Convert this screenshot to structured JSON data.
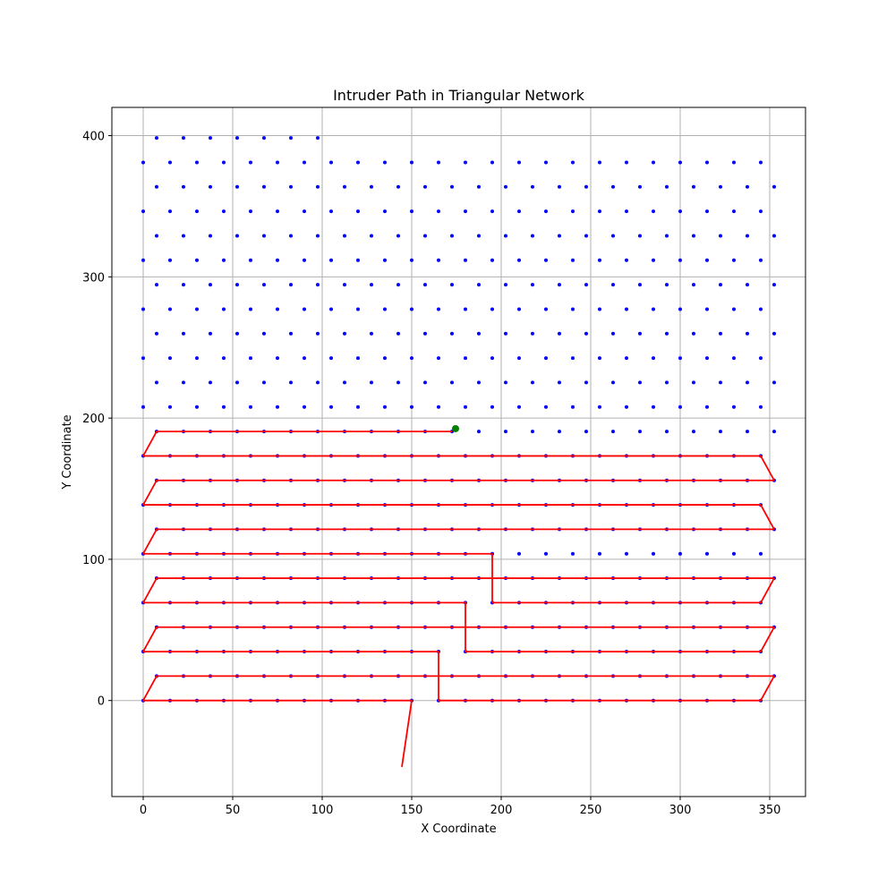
{
  "chart_data": {
    "type": "scatter",
    "title": "Intruder Path in Triangular Network",
    "xlabel": "X Coordinate",
    "ylabel": "Y Coordinate",
    "xlim": [
      -17.5,
      370
    ],
    "ylim": [
      -68,
      420
    ],
    "xticks": [
      0,
      50,
      100,
      150,
      200,
      250,
      300,
      350
    ],
    "yticks": [
      0,
      100,
      200,
      300,
      400
    ],
    "grid": true,
    "colors": {
      "nodes": "#0000ff",
      "path": "#ff0000",
      "intruder": "#008000",
      "grid": "#b0b0b0"
    },
    "network": {
      "layout": "triangular lattice",
      "spacing": 15,
      "row_height": 17.32,
      "rows": 24,
      "odd_row_x_offset": 7.5,
      "even_row_columns": 24,
      "odd_row_columns": 24,
      "last_row": {
        "row": 23,
        "x": [
          7.5,
          22.5,
          37.5,
          52.5,
          67.5,
          82.5,
          97.5
        ]
      },
      "row_22_x_max": 345
    },
    "series": [
      {
        "kind": "path",
        "points": [
          [
            144.5,
            -47
          ],
          [
            150,
            0
          ],
          [
            0,
            0
          ],
          [
            7.5,
            17.32
          ],
          [
            352.5,
            17.32
          ],
          [
            345,
            0
          ],
          [
            165,
            0
          ],
          [
            165,
            34.64
          ],
          [
            0,
            34.64
          ],
          [
            7.5,
            51.96
          ],
          [
            352.5,
            51.96
          ],
          [
            345,
            34.64
          ],
          [
            180,
            34.64
          ],
          [
            180,
            69.28
          ],
          [
            0,
            69.28
          ],
          [
            7.5,
            86.6
          ],
          [
            352.5,
            86.6
          ],
          [
            345,
            69.28
          ],
          [
            195,
            69.28
          ],
          [
            195,
            103.92
          ],
          [
            0,
            103.92
          ],
          [
            7.5,
            121.24
          ],
          [
            352.5,
            121.24
          ],
          [
            345,
            138.56
          ],
          [
            0,
            138.56
          ],
          [
            7.5,
            155.88
          ],
          [
            352.5,
            155.88
          ],
          [
            345,
            173.2
          ],
          [
            0,
            173.2
          ],
          [
            7.5,
            190.52
          ],
          [
            172.5,
            190.52
          ]
        ]
      },
      {
        "kind": "intruder",
        "points": [
          [
            174.5,
            192.5
          ]
        ]
      }
    ]
  }
}
